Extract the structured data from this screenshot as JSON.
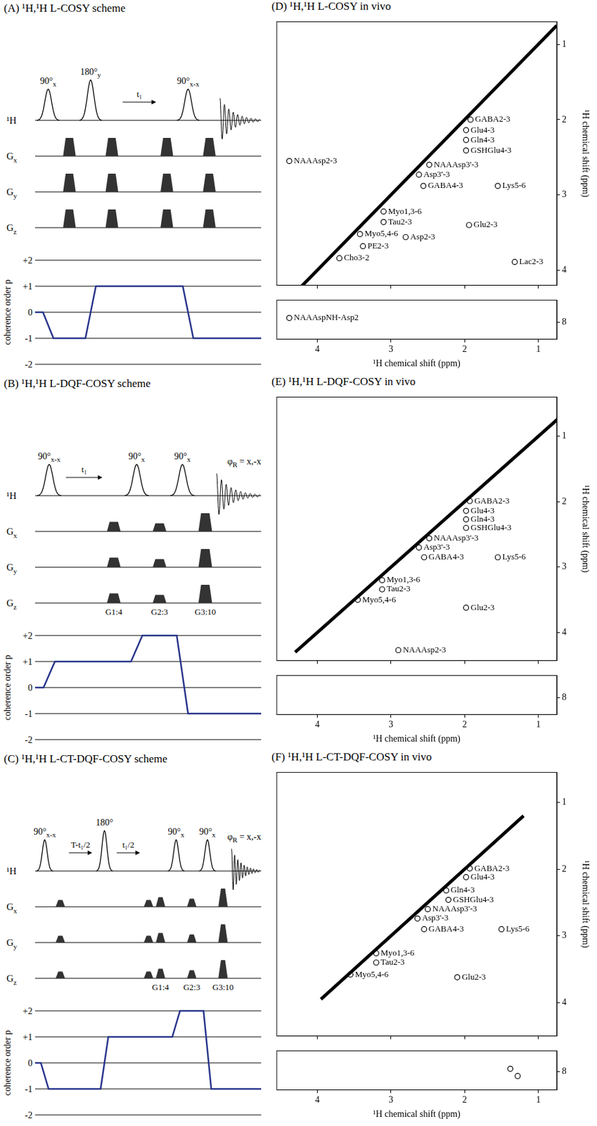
{
  "schemes": [
    {
      "title": "(A) ¹H,¹H L-COSY scheme",
      "rows": [
        {
          "label": "¹H"
        },
        {
          "label": "G",
          "sub": "x"
        },
        {
          "label": "G",
          "sub": "y"
        },
        {
          "label": "G",
          "sub": "z"
        }
      ],
      "sequence": [
        {
          "pulse": "90°",
          "phase": "x"
        },
        {
          "gradient": [
            1,
            1,
            1
          ]
        },
        {
          "pulse": "180°",
          "phase": "y"
        },
        {
          "gradient": [
            1,
            1,
            1
          ]
        },
        {
          "delay": "t₁"
        },
        {
          "gradient": [
            1,
            1,
            1
          ]
        },
        {
          "pulse": "90°",
          "phase": "x-x"
        },
        {
          "gradient": [
            1,
            1,
            1
          ]
        },
        {
          "acquisition": true
        }
      ],
      "coherence": {
        "label": "coherence order p",
        "levels": [
          {
            "value": 2,
            "label": "+2"
          },
          {
            "value": 1,
            "label": "+1"
          },
          0,
          -1,
          -2
        ],
        "pathway": [
          0,
          -1,
          1,
          -1
        ],
        "color": "#27348b"
      }
    },
    {
      "title": "(B) ¹H,¹H L-DQF-COSY scheme",
      "rows": [
        {
          "label": "¹H"
        },
        {
          "label": "G",
          "sub": "x"
        },
        {
          "label": "G",
          "sub": "y"
        },
        {
          "label": "G",
          "sub": "z"
        }
      ],
      "sequence": [
        {
          "pulse": "90°",
          "phase": "x-x"
        },
        {
          "delay": "t₁"
        },
        {
          "gradient": [
            4,
            4,
            4
          ],
          "label": "G1:4"
        },
        {
          "pulse": "90°",
          "phase": "x"
        },
        {
          "gradient": [
            3,
            3,
            3
          ],
          "label": "G2:3"
        },
        {
          "pulse": "90°",
          "phase": "x"
        },
        {
          "gradient": [
            10,
            10,
            10
          ],
          "label": "G3:10"
        },
        {
          "acquisition": true,
          "receiver_phase": {
            "symbol": "φ",
            "sub": "R",
            "text": "= x,-x"
          }
        }
      ],
      "coherence": {
        "label": "coherence order p",
        "levels": [
          {
            "value": 2,
            "label": "+2"
          },
          {
            "value": 1,
            "label": "+1"
          },
          0,
          -1,
          -2
        ],
        "pathway": [
          0,
          1,
          2,
          -1
        ],
        "color": "#27348b"
      }
    },
    {
      "title": "(C) ¹H,¹H L-CT-DQF-COSY scheme",
      "rows": [
        {
          "label": "¹H"
        },
        {
          "label": "G",
          "sub": "x"
        },
        {
          "label": "G",
          "sub": "y"
        },
        {
          "label": "G",
          "sub": "z"
        }
      ],
      "sequence": [
        {
          "pulse": "90°",
          "phase": "x-x"
        },
        {
          "gradient": [
            2,
            2,
            2
          ]
        },
        {
          "delay": "T-t₁/2"
        },
        {
          "pulse": "180°"
        },
        {
          "delay": "t₁/2"
        },
        {
          "gradient": [
            2,
            2,
            2
          ]
        },
        {
          "gradient": [
            4,
            4,
            4
          ],
          "label": "G1:4"
        },
        {
          "pulse": "90°",
          "phase": "x"
        },
        {
          "gradient": [
            3,
            3,
            3
          ],
          "label": "G2:3"
        },
        {
          "pulse": "90°",
          "phase": "x"
        },
        {
          "gradient": [
            10,
            10,
            10
          ],
          "label": "G3:10"
        },
        {
          "acquisition": true,
          "receiver_phase": {
            "symbol": "φ",
            "sub": "R",
            "text": "= x,-x"
          }
        }
      ],
      "coherence": {
        "label": "coherence order p",
        "levels": [
          {
            "value": 2,
            "label": "+2"
          },
          {
            "value": 1,
            "label": "+1"
          },
          0,
          -1,
          -2
        ],
        "pathway": [
          0,
          -1,
          1,
          2,
          -1
        ],
        "color": "#27348b"
      }
    }
  ],
  "chart_data": [
    {
      "type": "contour",
      "title": "(D) ¹H,¹H L-COSY in vivo",
      "ylabel": "¹H chemical shift (ppm)",
      "xlim": [
        4.55,
        0.75
      ],
      "xticks": [
        4,
        3,
        2,
        1
      ],
      "ylim": [
        4.2,
        0.7
      ],
      "yticks": [
        1,
        2,
        3,
        4
      ],
      "tick_labels": "y",
      "grid": false,
      "color": "#000000",
      "diagonal": {
        "x": [
          4.55,
          0.75
        ],
        "y": [
          4.55,
          0.75
        ]
      },
      "peaks": [
        {
          "text": "NAAAsp2-3",
          "x": 4.38,
          "y": 2.55
        },
        {
          "text": "GABA2-3",
          "x": 1.92,
          "y": 2.0
        },
        {
          "text": "Glu4-3",
          "x": 1.98,
          "y": 2.14
        },
        {
          "text": "Gln4-3",
          "x": 1.98,
          "y": 2.27
        },
        {
          "text": "GSHGlu4-3",
          "x": 1.98,
          "y": 2.41
        },
        {
          "text": "NAAAsp3'-3",
          "x": 2.48,
          "y": 2.6
        },
        {
          "text": "Asp3'-3",
          "x": 2.62,
          "y": 2.73
        },
        {
          "text": "GABA4-3",
          "x": 2.56,
          "y": 2.88
        },
        {
          "text": "Lys5-6",
          "x": 1.55,
          "y": 2.88
        },
        {
          "text": "Myo1,3-6",
          "x": 3.1,
          "y": 3.22
        },
        {
          "text": "Tau2-3",
          "x": 3.1,
          "y": 3.36
        },
        {
          "text": "Myo5,4-6",
          "x": 3.42,
          "y": 3.52
        },
        {
          "text": "Glu2-3",
          "x": 1.94,
          "y": 3.4
        },
        {
          "text": "PE2-3",
          "x": 3.38,
          "y": 3.68
        },
        {
          "text": "Asp2-3",
          "x": 2.8,
          "y": 3.56
        },
        {
          "text": "Cho3-2",
          "x": 3.7,
          "y": 3.84
        },
        {
          "text": "Lac2-3",
          "x": 1.32,
          "y": 3.89
        }
      ]
    },
    {
      "type": "contour",
      "xlabel": "¹H chemical shift (ppm)",
      "xlim": [
        4.55,
        0.75
      ],
      "xticks": [
        4,
        3,
        2,
        1
      ],
      "ylim": [
        8.3,
        7.6
      ],
      "yticks": [
        8
      ],
      "grid": false,
      "color": "#000000",
      "peaks": [
        {
          "text": "NAAAspNH-Asp2",
          "x": 4.38,
          "y": 7.92
        }
      ]
    },
    {
      "type": "contour",
      "title": "(E) ¹H,¹H L-DQF-COSY in vivo",
      "ylabel": "¹H chemical shift (ppm)",
      "xlim": [
        4.55,
        0.75
      ],
      "xticks": [
        4,
        3,
        2,
        1
      ],
      "ylim": [
        4.43,
        0.4
      ],
      "yticks": [
        1,
        2,
        3,
        4
      ],
      "tick_labels": "y",
      "grid": false,
      "color": "#000000",
      "diagonal": {
        "x": [
          4.3,
          0.6
        ],
        "y": [
          4.3,
          0.6
        ]
      },
      "peaks": [
        {
          "text": "GABA2-3",
          "x": 1.93,
          "y": 1.99
        },
        {
          "text": "Glu4-3",
          "x": 1.98,
          "y": 2.14
        },
        {
          "text": "Gln4-3",
          "x": 1.98,
          "y": 2.27
        },
        {
          "text": "GSHGlu4-3",
          "x": 1.98,
          "y": 2.4
        },
        {
          "text": "NAAAsp3'-3",
          "x": 2.48,
          "y": 2.56
        },
        {
          "text": "Asp3'-3",
          "x": 2.62,
          "y": 2.7
        },
        {
          "text": "GABA4-3",
          "x": 2.55,
          "y": 2.85
        },
        {
          "text": "Lys5-6",
          "x": 1.55,
          "y": 2.85
        },
        {
          "text": "Myo1,3-6",
          "x": 3.12,
          "y": 3.2
        },
        {
          "text": "Tau2-3",
          "x": 3.12,
          "y": 3.34
        },
        {
          "text": "Myo5,4-6",
          "x": 3.45,
          "y": 3.5
        },
        {
          "text": "Glu2-3",
          "x": 1.98,
          "y": 3.62
        },
        {
          "text": "NAAAsp2-3",
          "x": 2.9,
          "y": 4.27
        }
      ]
    },
    {
      "type": "contour",
      "xlabel": "¹H chemical shift (ppm)",
      "xlim": [
        4.55,
        0.75
      ],
      "xticks": [
        4,
        3,
        2,
        1
      ],
      "ylim": [
        8.3,
        7.6
      ],
      "yticks": [
        8
      ],
      "grid": false,
      "color": "#000000"
    },
    {
      "type": "contour",
      "title": "(F) ¹H,¹H L-CT-DQF-COSY in vivo",
      "ylabel": "¹H chemical shift (ppm)",
      "xlim": [
        4.55,
        0.75
      ],
      "xticks": [
        4,
        3,
        2,
        1
      ],
      "ylim": [
        4.5,
        0.55
      ],
      "yticks": [
        1,
        2,
        3,
        4
      ],
      "tick_labels": "y",
      "grid": false,
      "color": "#000000",
      "diagonal": {
        "x": [
          3.95,
          1.2
        ],
        "y": [
          3.95,
          1.2
        ]
      },
      "peaks": [
        {
          "text": "GABA2-3",
          "x": 1.93,
          "y": 1.99
        },
        {
          "text": "Glu4-3",
          "x": 1.98,
          "y": 2.12
        },
        {
          "text": "Gln4-3",
          "x": 2.25,
          "y": 2.32
        },
        {
          "text": "GSHGlu4-3",
          "x": 2.22,
          "y": 2.46
        },
        {
          "text": "NAAAsp3'-3",
          "x": 2.5,
          "y": 2.6
        },
        {
          "text": "Asp3'-3",
          "x": 2.64,
          "y": 2.74
        },
        {
          "text": "GABA4-3",
          "x": 2.55,
          "y": 2.9
        },
        {
          "text": "Lys5-6",
          "x": 1.5,
          "y": 2.9
        },
        {
          "text": "Myo1,3-6",
          "x": 3.2,
          "y": 3.26
        },
        {
          "text": "Tau2-3",
          "x": 3.2,
          "y": 3.4
        },
        {
          "text": "Myo5,4-6",
          "x": 3.55,
          "y": 3.58
        },
        {
          "text": "Glu2-3",
          "x": 2.1,
          "y": 3.62
        }
      ]
    },
    {
      "type": "contour",
      "xlabel": "¹H chemical shift (ppm)",
      "xlim": [
        4.55,
        0.75
      ],
      "xticks": [
        4,
        3,
        2,
        1
      ],
      "ylim": [
        8.3,
        7.65
      ],
      "yticks": [
        8
      ],
      "grid": false,
      "color": "#000000",
      "peaks": [
        {
          "x": 1.38,
          "y": 7.95
        },
        {
          "x": 1.28,
          "y": 8.07
        }
      ]
    }
  ]
}
